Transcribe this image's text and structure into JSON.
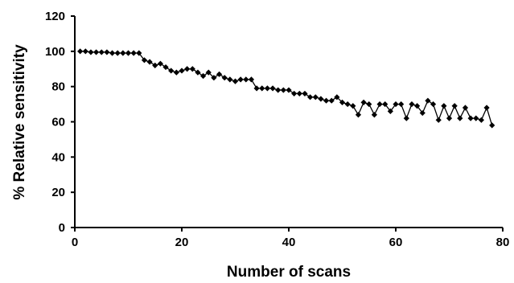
{
  "chart_data": {
    "type": "line",
    "title": "",
    "xlabel": "Number of scans",
    "ylabel": "% Relative sensitivity",
    "xlim": [
      0,
      80
    ],
    "ylim": [
      0,
      120
    ],
    "xticks": [
      0,
      20,
      40,
      60,
      80
    ],
    "yticks": [
      0,
      20,
      40,
      60,
      80,
      100,
      120
    ],
    "grid": false,
    "legend": "none",
    "marker": "diamond",
    "color": "#000000",
    "series": [
      {
        "x": [
          1,
          2,
          3,
          4,
          5,
          6,
          7,
          8,
          9,
          10,
          11,
          12,
          13,
          14,
          15,
          16,
          17,
          18,
          19,
          20,
          21,
          22,
          23,
          24,
          25,
          26,
          27,
          28,
          29,
          30,
          31,
          32,
          33,
          34,
          35,
          36,
          37,
          38,
          39,
          40,
          41,
          42,
          43,
          44,
          45,
          46,
          47,
          48,
          49,
          50,
          51,
          52,
          53,
          54,
          55,
          56,
          57,
          58,
          59,
          60,
          61,
          62,
          63,
          64,
          65,
          66,
          67,
          68,
          69,
          70,
          71,
          72,
          73,
          74,
          75,
          76,
          77,
          78
        ],
        "values": [
          100,
          100,
          99.5,
          99.5,
          99.5,
          99.5,
          99,
          99,
          99,
          99,
          99,
          99,
          95,
          94,
          92,
          93,
          91,
          89,
          88,
          89,
          90,
          90,
          88,
          86,
          88,
          85,
          87,
          85,
          84,
          83,
          84,
          84,
          84,
          79,
          79,
          79,
          79,
          78,
          78,
          78,
          76,
          76,
          76,
          74,
          74,
          73,
          72,
          72,
          74,
          71,
          70,
          69,
          64,
          71,
          70,
          64,
          70,
          70,
          66,
          70,
          70,
          62,
          70,
          69,
          65,
          72,
          70,
          61,
          69,
          62,
          69,
          62,
          68,
          62,
          62,
          61,
          68,
          58
        ]
      }
    ]
  }
}
